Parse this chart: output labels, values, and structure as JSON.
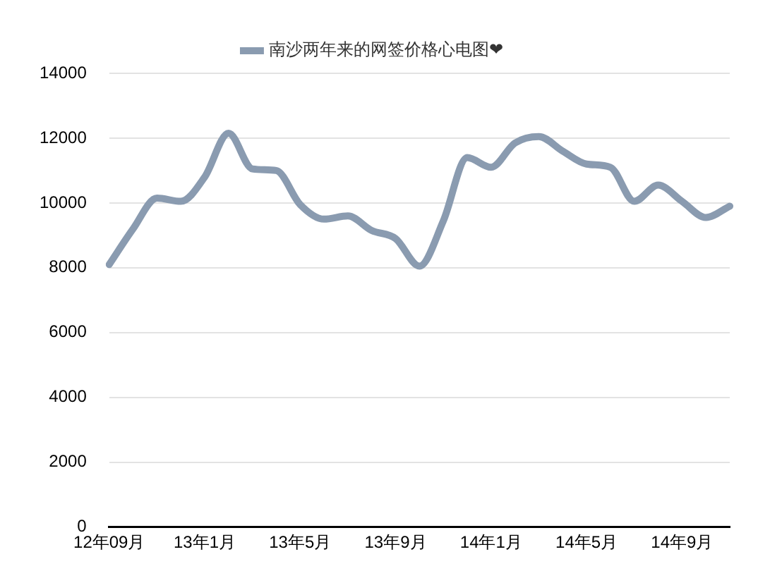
{
  "chart_data": {
    "type": "line",
    "categories": [
      "12年09月",
      null,
      null,
      null,
      "13年1月",
      null,
      null,
      null,
      "13年5月",
      null,
      null,
      null,
      "13年9月",
      null,
      null,
      null,
      "14年1月",
      null,
      null,
      null,
      "14年5月",
      null,
      null,
      null,
      "14年9月",
      null,
      null
    ],
    "series": [
      {
        "name": "南沙两年来的网签价格心电图❤",
        "color": "#8a9bb0",
        "values": [
          8100,
          9200,
          10150,
          10050,
          10800,
          12150,
          11050,
          11000,
          9950,
          9500,
          9600,
          9150,
          8900,
          8050,
          9450,
          11400,
          11100,
          11850,
          12050,
          11600,
          11200,
          11100,
          10050,
          10550,
          10050,
          9550,
          9900
        ]
      }
    ],
    "ylim": [
      0,
      14000
    ],
    "yticks": [
      0,
      2000,
      4000,
      6000,
      8000,
      10000,
      12000,
      14000
    ],
    "grid": "y",
    "legend": "top",
    "marker": "none",
    "line_style": "solid"
  }
}
